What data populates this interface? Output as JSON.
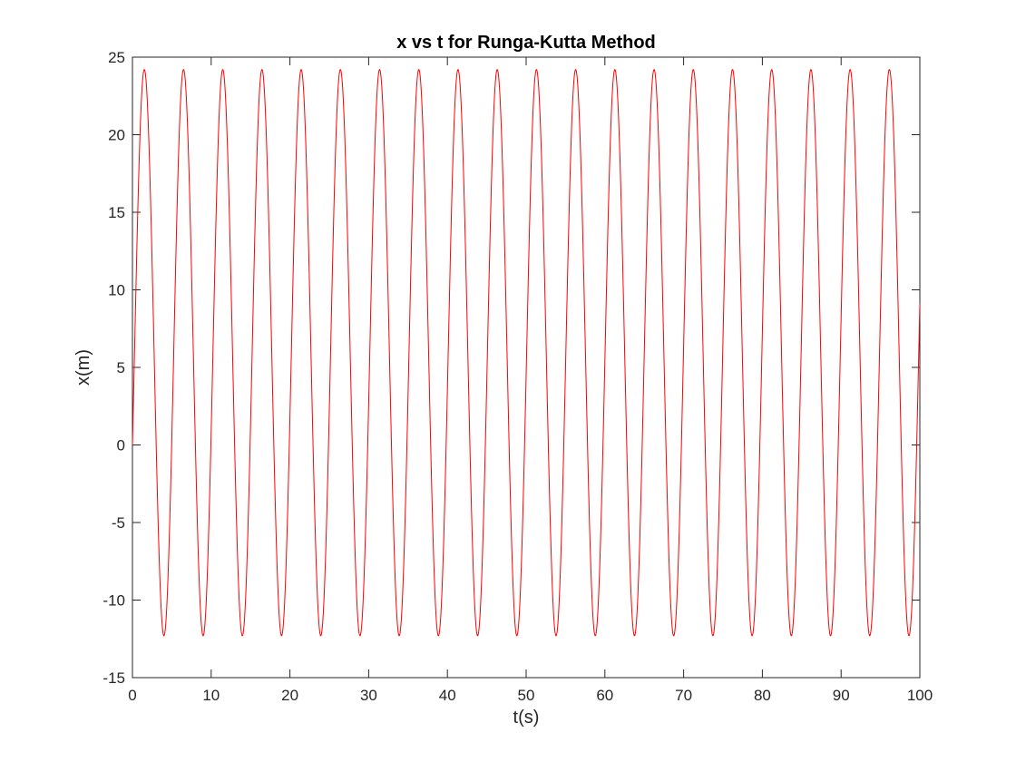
{
  "chart_data": {
    "type": "line",
    "title": "x vs t for Runga-Kutta Method",
    "xlabel": "t(s)",
    "ylabel": "x(m)",
    "xlim": [
      0,
      100
    ],
    "ylim": [
      -15,
      25
    ],
    "xticks": [
      0,
      10,
      20,
      30,
      40,
      50,
      60,
      70,
      80,
      90,
      100
    ],
    "yticks": [
      -15,
      -10,
      -5,
      0,
      5,
      10,
      15,
      20,
      25
    ],
    "xtick_labels": [
      "0",
      "10",
      "20",
      "30",
      "40",
      "50",
      "60",
      "70",
      "80",
      "90",
      "100"
    ],
    "ytick_labels": [
      "-15",
      "-10",
      "-5",
      "0",
      "5",
      "10",
      "15",
      "20",
      "25"
    ],
    "grid": false,
    "box": true,
    "series": [
      {
        "color": "#ff0000",
        "waveform": "sinusoid",
        "start": [
          0,
          0
        ],
        "max": 24.2,
        "min": -12.3,
        "period": 4.98
      }
    ]
  }
}
